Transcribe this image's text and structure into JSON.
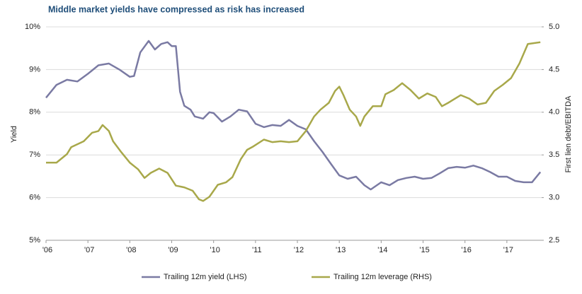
{
  "chart_data": {
    "type": "line",
    "title": "Middle market yields have compressed as risk has increased",
    "y_label": "Yield",
    "y2_label": "First lien debt/EBITDA",
    "xlim": [
      2006,
      2017.83
    ],
    "xticks": [
      {
        "value": 2006,
        "label": "'06"
      },
      {
        "value": 2007,
        "label": "'07"
      },
      {
        "value": 2008,
        "label": "'08"
      },
      {
        "value": 2009,
        "label": "'09"
      },
      {
        "value": 2010,
        "label": "'10"
      },
      {
        "value": 2011,
        "label": "'11"
      },
      {
        "value": 2012,
        "label": "'12"
      },
      {
        "value": 2013,
        "label": "'13"
      },
      {
        "value": 2014,
        "label": "'14"
      },
      {
        "value": 2015,
        "label": "'15"
      },
      {
        "value": 2016,
        "label": "'16"
      },
      {
        "value": 2017,
        "label": "'17"
      }
    ],
    "ylim": [
      5,
      10
    ],
    "yticks": [
      {
        "value": 5,
        "label": "5%"
      },
      {
        "value": 6,
        "label": "6%"
      },
      {
        "value": 7,
        "label": "7%"
      },
      {
        "value": 8,
        "label": "8%"
      },
      {
        "value": 9,
        "label": "9%"
      },
      {
        "value": 10,
        "label": "10%"
      }
    ],
    "y2lim": [
      2.5,
      5
    ],
    "y2ticks": [
      2.5,
      {
        "value": 3,
        "label": "3.0"
      },
      3.5,
      {
        "value": 4,
        "label": "4.0"
      },
      4.5,
      {
        "value": 5,
        "label": "5.0"
      }
    ],
    "grid": true,
    "legend": "bottom",
    "series": [
      {
        "name": "Trailing 12m yield (LHS)",
        "color": "#7a7aa3",
        "axis": "y",
        "x": [
          2006.0,
          2006.25,
          2006.5,
          2006.75,
          2007.0,
          2007.25,
          2007.5,
          2007.75,
          2008.0,
          2008.1,
          2008.25,
          2008.45,
          2008.6,
          2008.75,
          2008.9,
          2009.0,
          2009.1,
          2009.2,
          2009.3,
          2009.45,
          2009.55,
          2009.75,
          2009.9,
          2010.0,
          2010.2,
          2010.4,
          2010.6,
          2010.8,
          2011.0,
          2011.2,
          2011.4,
          2011.6,
          2011.8,
          2012.0,
          2012.2,
          2012.4,
          2012.6,
          2012.8,
          2013.0,
          2013.2,
          2013.4,
          2013.6,
          2013.75,
          2014.0,
          2014.2,
          2014.4,
          2014.6,
          2014.8,
          2015.0,
          2015.2,
          2015.4,
          2015.6,
          2015.8,
          2016.0,
          2016.2,
          2016.4,
          2016.6,
          2016.8,
          2017.0,
          2017.2,
          2017.4,
          2017.6,
          2017.8
        ],
        "values": [
          8.34,
          8.64,
          8.76,
          8.72,
          8.9,
          9.1,
          9.14,
          9.0,
          8.83,
          8.85,
          9.4,
          9.67,
          9.47,
          9.6,
          9.64,
          9.55,
          9.55,
          8.48,
          8.15,
          8.06,
          7.9,
          7.85,
          8.0,
          7.98,
          7.78,
          7.9,
          8.06,
          8.02,
          7.73,
          7.65,
          7.7,
          7.68,
          7.82,
          7.68,
          7.6,
          7.32,
          7.07,
          6.79,
          6.52,
          6.44,
          6.49,
          6.29,
          6.19,
          6.36,
          6.29,
          6.41,
          6.46,
          6.49,
          6.44,
          6.46,
          6.57,
          6.69,
          6.72,
          6.7,
          6.75,
          6.69,
          6.6,
          6.49,
          6.49,
          6.39,
          6.36,
          6.36,
          6.6
        ]
      },
      {
        "name": "Trailing 12m leverage (RHS)",
        "color": "#a8a84a",
        "axis": "y2",
        "x": [
          2006.0,
          2006.25,
          2006.5,
          2006.6,
          2006.9,
          2007.1,
          2007.25,
          2007.35,
          2007.5,
          2007.6,
          2007.8,
          2008.0,
          2008.2,
          2008.35,
          2008.5,
          2008.7,
          2008.9,
          2009.1,
          2009.3,
          2009.5,
          2009.65,
          2009.75,
          2009.9,
          2010.1,
          2010.3,
          2010.45,
          2010.65,
          2010.8,
          2010.95,
          2011.2,
          2011.4,
          2011.6,
          2011.8,
          2012.0,
          2012.2,
          2012.4,
          2012.55,
          2012.75,
          2012.9,
          2013.0,
          2013.1,
          2013.25,
          2013.4,
          2013.5,
          2013.6,
          2013.8,
          2014.0,
          2014.1,
          2014.3,
          2014.5,
          2014.7,
          2014.9,
          2015.1,
          2015.3,
          2015.45,
          2015.6,
          2015.9,
          2016.1,
          2016.3,
          2016.5,
          2016.7,
          2016.9,
          2017.1,
          2017.3,
          2017.5,
          2017.8
        ],
        "values": [
          3.41,
          3.41,
          3.51,
          3.59,
          3.66,
          3.76,
          3.78,
          3.85,
          3.78,
          3.66,
          3.53,
          3.41,
          3.33,
          3.23,
          3.29,
          3.34,
          3.29,
          3.14,
          3.12,
          3.08,
          2.98,
          2.96,
          3.01,
          3.15,
          3.18,
          3.24,
          3.45,
          3.56,
          3.6,
          3.68,
          3.65,
          3.66,
          3.65,
          3.66,
          3.78,
          3.95,
          4.03,
          4.11,
          4.25,
          4.3,
          4.2,
          4.03,
          3.95,
          3.84,
          3.95,
          4.07,
          4.07,
          4.21,
          4.26,
          4.34,
          4.26,
          4.16,
          4.22,
          4.18,
          4.07,
          4.11,
          4.2,
          4.16,
          4.09,
          4.11,
          4.25,
          4.32,
          4.4,
          4.57,
          4.8,
          4.82
        ]
      }
    ]
  }
}
